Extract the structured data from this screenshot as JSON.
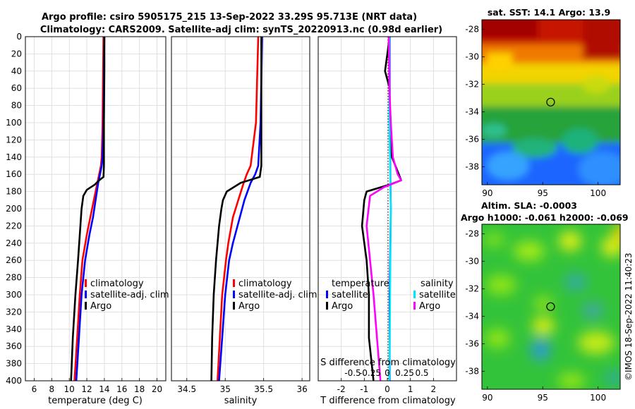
{
  "title": {
    "line1": "Argo profile: csiro 5905175_215 13-Sep-2022 33.29S 95.713E (NRT data)",
    "line2": "Climatology: CARS2009. Satellite-adj clim: synTS_20220913.nc (0.98d earlier)"
  },
  "colors": {
    "climatology": "#ff0000",
    "satellite": "#0000ff",
    "argo": "#000000",
    "salinity_sat": "#00e5ff",
    "salinity_argo": "#ff00ff"
  },
  "chart_data": [
    {
      "type": "line",
      "name": "temperature-profile",
      "xlabel": "temperature (deg C)",
      "ylabel": "depth",
      "xlim": [
        5,
        21
      ],
      "ylim": [
        0,
        400
      ],
      "xticks": [
        6,
        8,
        10,
        12,
        14,
        16,
        18,
        20
      ],
      "yticks": [
        0,
        20,
        40,
        60,
        80,
        100,
        120,
        140,
        160,
        180,
        200,
        220,
        240,
        260,
        280,
        300,
        320,
        340,
        360,
        380,
        400
      ],
      "legend": [
        "climatology",
        "satellite-adj. clim",
        "Argo"
      ],
      "series": [
        {
          "name": "climatology",
          "depth": [
            0,
            100,
            140,
            150,
            160,
            170,
            190,
            210,
            230,
            260,
            300,
            350,
            400
          ],
          "values": [
            13.9,
            13.8,
            13.7,
            13.6,
            13.4,
            13.2,
            12.8,
            12.4,
            12.0,
            11.5,
            11.2,
            10.9,
            10.6
          ]
        },
        {
          "name": "satellite-adj. clim",
          "depth": [
            0,
            100,
            140,
            150,
            160,
            170,
            190,
            210,
            230,
            260,
            300,
            350,
            400
          ],
          "values": [
            14.0,
            13.9,
            13.8,
            13.7,
            13.5,
            13.3,
            13.0,
            12.7,
            12.3,
            11.8,
            11.4,
            11.1,
            10.8
          ]
        },
        {
          "name": "Argo",
          "depth": [
            0,
            40,
            100,
            150,
            163,
            167,
            172,
            178,
            185,
            200,
            230,
            260,
            300,
            350,
            400
          ],
          "values": [
            14.0,
            14.0,
            13.95,
            13.95,
            13.9,
            13.4,
            12.9,
            12.0,
            11.6,
            11.4,
            11.2,
            11.0,
            10.7,
            10.4,
            10.2
          ]
        }
      ]
    },
    {
      "type": "line",
      "name": "salinity-profile",
      "xlabel": "salinity",
      "ylabel": "depth",
      "xlim": [
        34.3,
        36.1
      ],
      "ylim": [
        0,
        400
      ],
      "xticks": [
        "34.5",
        "35",
        "35.5",
        "36"
      ],
      "legend": [
        "climatology",
        "satellite-adj. clim",
        "Argo"
      ],
      "series": [
        {
          "name": "climatology",
          "depth": [
            0,
            100,
            150,
            160,
            170,
            190,
            210,
            240,
            260,
            300,
            350,
            400
          ],
          "values": [
            35.43,
            35.4,
            35.33,
            35.28,
            35.24,
            35.17,
            35.1,
            35.04,
            35.01,
            34.96,
            34.93,
            34.9
          ]
        },
        {
          "name": "satellite-adj. clim",
          "depth": [
            0,
            100,
            150,
            160,
            170,
            190,
            210,
            240,
            260,
            300,
            350,
            400
          ],
          "values": [
            35.48,
            35.46,
            35.43,
            35.39,
            35.33,
            35.25,
            35.19,
            35.1,
            35.05,
            35.0,
            34.96,
            34.92
          ]
        },
        {
          "name": "Argo",
          "depth": [
            0,
            40,
            100,
            150,
            163,
            170,
            180,
            190,
            200,
            220,
            260,
            300,
            350,
            400
          ],
          "values": [
            35.47,
            35.47,
            35.47,
            35.47,
            35.45,
            35.2,
            35.02,
            34.97,
            34.95,
            34.92,
            34.88,
            34.85,
            34.83,
            34.82
          ]
        }
      ]
    },
    {
      "type": "line",
      "name": "difference-profile",
      "xlabel": "T difference from climatology",
      "x2label": "S difference from climatology",
      "xlim": [
        -3,
        3
      ],
      "x2lim": [
        -1,
        1
      ],
      "ylim": [
        0,
        400
      ],
      "xticks": [
        -2,
        -1,
        0,
        1,
        2
      ],
      "x2ticks": [
        "-0.5",
        "-0.25",
        "0",
        "0.25",
        "0.5"
      ],
      "legend_headers": [
        "temperature",
        "salinity"
      ],
      "legend": [
        "satellite",
        "Argo",
        "satellite",
        "Argo"
      ],
      "series": [
        {
          "name": "T satellite",
          "depth": [
            0,
            100,
            200,
            300,
            400
          ],
          "values": [
            0.1,
            0.1,
            0.15,
            0.1,
            0.1
          ]
        },
        {
          "name": "T Argo",
          "depth": [
            0,
            40,
            60,
            100,
            140,
            160,
            167,
            172,
            180,
            190,
            220,
            260,
            300,
            350,
            400
          ],
          "values": [
            0.1,
            -0.1,
            0.1,
            0.1,
            0.2,
            0.5,
            0.6,
            0.1,
            -0.9,
            -1.0,
            -1.1,
            -0.9,
            -0.8,
            -0.8,
            -0.6
          ]
        },
        {
          "name": "S satellite",
          "depth": [
            0,
            100,
            200,
            300,
            400
          ],
          "values": [
            0.03,
            0.03,
            0.05,
            0.04,
            0.03
          ]
        },
        {
          "name": "S Argo",
          "depth": [
            0,
            60,
            100,
            140,
            160,
            167,
            175,
            185,
            220,
            300,
            400
          ],
          "values": [
            0.02,
            0.03,
            0.05,
            0.08,
            0.15,
            0.2,
            -0.05,
            -0.25,
            -0.3,
            -0.2,
            -0.1
          ]
        }
      ]
    },
    {
      "type": "heatmap",
      "name": "sst-map",
      "title": "sat. SST: 14.1 Argo: 13.9",
      "xticks": [
        90,
        95,
        100
      ],
      "yticks": [
        -28,
        -30,
        -32,
        -34,
        -36,
        -38
      ],
      "xlim": [
        89.5,
        102
      ],
      "ylim": [
        -39.3,
        -27.3
      ],
      "marker": {
        "lon": 95.713,
        "lat": -33.29
      }
    },
    {
      "type": "heatmap",
      "name": "sla-map",
      "title_line1": "Altim. SLA: -0.0003",
      "title_line2": "Argo h1000: -0.061 h2000: -0.069",
      "xticks": [
        90,
        95,
        100
      ],
      "yticks": [
        -28,
        -30,
        -32,
        -34,
        -36,
        -38
      ],
      "xlim": [
        89.5,
        102
      ],
      "ylim": [
        -39.3,
        -27.3
      ],
      "marker": {
        "lon": 95.713,
        "lat": -33.29
      }
    }
  ],
  "watermark": "©IMOS 18-Sep-2022 11:40:23"
}
